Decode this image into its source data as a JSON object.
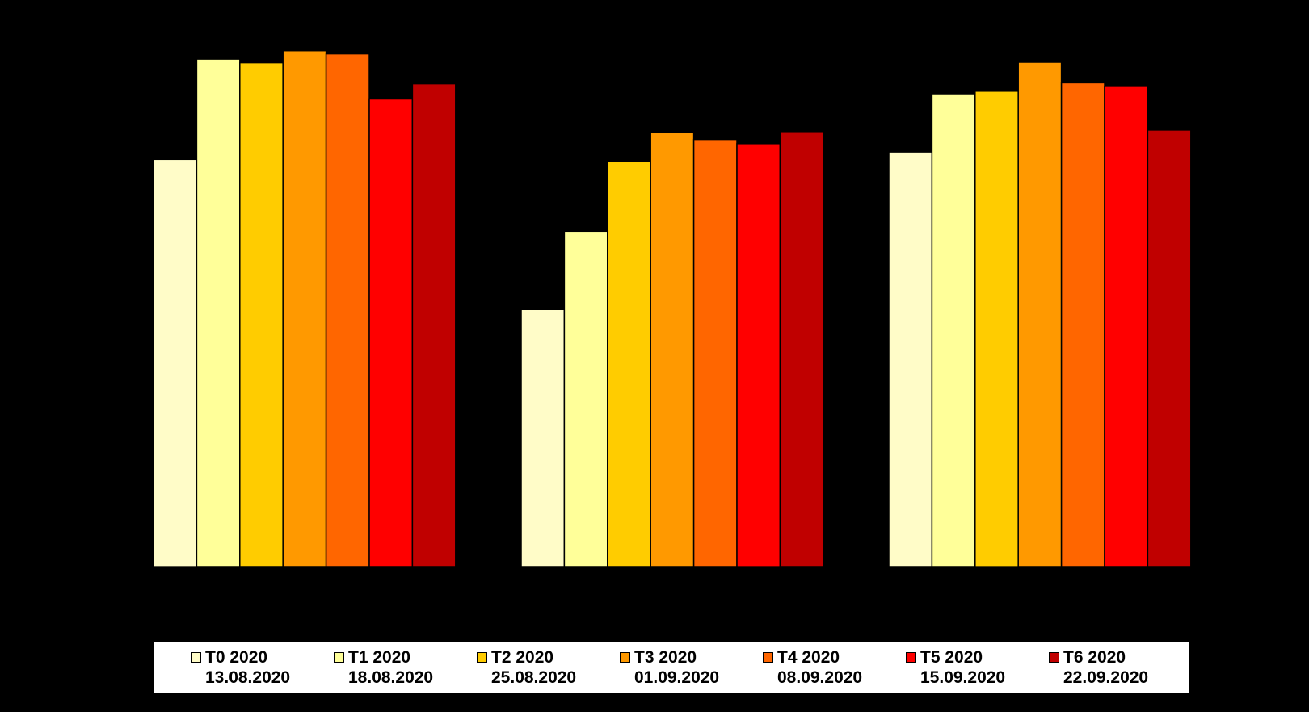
{
  "chart_data": {
    "type": "bar",
    "title": "",
    "xlabel": "",
    "ylabel": "",
    "categories": [
      "",
      "",
      ""
    ],
    "ylim": [
      0,
      100
    ],
    "grid": false,
    "legend_position": "bottom",
    "series": [
      {
        "name": "T0 2020",
        "date": "13.08.2020",
        "color": "#FFFCC8",
        "values": [
          77.5,
          48.9,
          78.9
        ]
      },
      {
        "name": "T1 2020",
        "date": "18.08.2020",
        "color": "#FFFF99",
        "values": [
          96.6,
          63.8,
          90.0
        ]
      },
      {
        "name": "T2 2020",
        "date": "25.08.2020",
        "color": "#FFCC00",
        "values": [
          95.9,
          77.1,
          90.5
        ]
      },
      {
        "name": "T3 2020",
        "date": "01.09.2020",
        "color": "#FF9900",
        "values": [
          98.2,
          82.6,
          96.0
        ]
      },
      {
        "name": "T4 2020",
        "date": "08.09.2020",
        "color": "#FF6600",
        "values": [
          97.6,
          81.3,
          92.1
        ]
      },
      {
        "name": "T5 2020",
        "date": "15.09.2020",
        "color": "#FF0000",
        "values": [
          89.0,
          80.5,
          91.4
        ]
      },
      {
        "name": "T6 2020",
        "date": "22.09.2020",
        "color": "#C00000",
        "values": [
          91.9,
          82.8,
          83.1
        ]
      }
    ]
  }
}
